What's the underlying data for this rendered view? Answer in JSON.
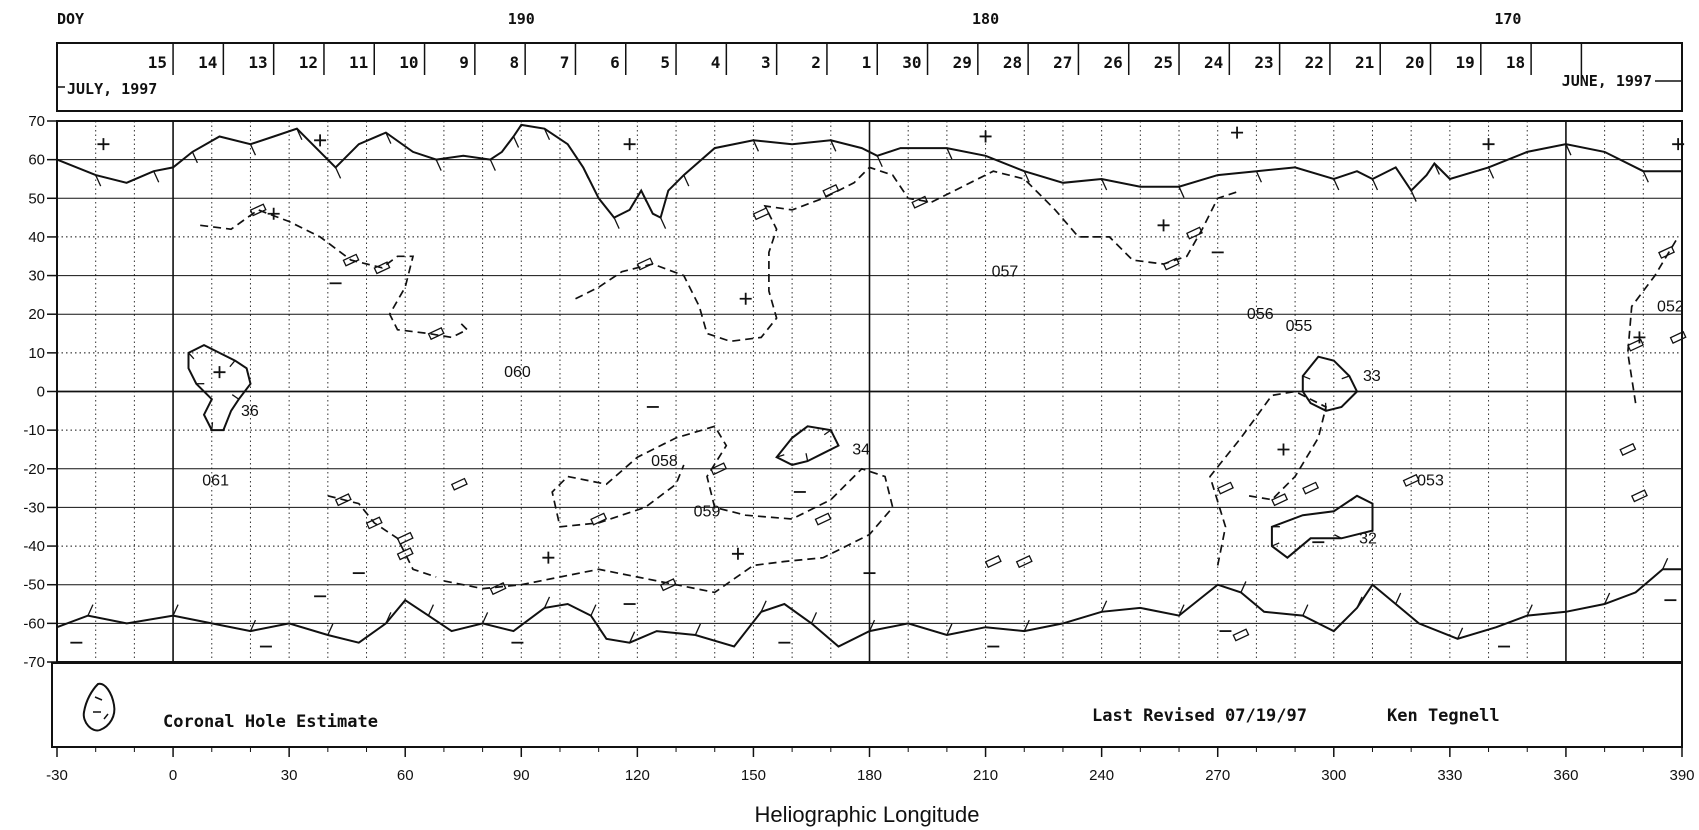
{
  "chart_data": {
    "type": "synoptic-map",
    "header": {
      "doy_label": "DOY",
      "doy_marks": [
        {
          "label": "190",
          "lon": 90
        },
        {
          "label": "180",
          "lon": 210
        },
        {
          "label": "170",
          "lon": 345
        }
      ],
      "dates": [
        {
          "label": "15",
          "lon": 0
        },
        {
          "label": "14",
          "lon": 13
        },
        {
          "label": "13",
          "lon": 26
        },
        {
          "label": "12",
          "lon": 39
        },
        {
          "label": "11",
          "lon": 52
        },
        {
          "label": "10",
          "lon": 65
        },
        {
          "label": "9",
          "lon": 78
        },
        {
          "label": "8",
          "lon": 91
        },
        {
          "label": "7",
          "lon": 104
        },
        {
          "label": "6",
          "lon": 117
        },
        {
          "label": "5",
          "lon": 130
        },
        {
          "label": "4",
          "lon": 143
        },
        {
          "label": "3",
          "lon": 156
        },
        {
          "label": "2",
          "lon": 169
        },
        {
          "label": "1",
          "lon": 182
        },
        {
          "label": "30",
          "lon": 195
        },
        {
          "label": "29",
          "lon": 208
        },
        {
          "label": "28",
          "lon": 221
        },
        {
          "label": "27",
          "lon": 234
        },
        {
          "label": "26",
          "lon": 247
        },
        {
          "label": "25",
          "lon": 260
        },
        {
          "label": "24",
          "lon": 273
        },
        {
          "label": "23",
          "lon": 286
        },
        {
          "label": "22",
          "lon": 299
        },
        {
          "label": "21",
          "lon": 312
        },
        {
          "label": "20",
          "lon": 325
        },
        {
          "label": "19",
          "lon": 338
        },
        {
          "label": "18",
          "lon": 351
        }
      ],
      "month_left": "JULY, 1997",
      "month_right": "JUNE, 1997"
    },
    "xlabel": "Heliographic Longitude",
    "xlim": [
      -30,
      390
    ],
    "xticks": [
      -30,
      0,
      30,
      60,
      90,
      120,
      150,
      180,
      210,
      240,
      270,
      300,
      330,
      360,
      390
    ],
    "ylim": [
      -70,
      70
    ],
    "yticks": [
      70,
      60,
      50,
      40,
      30,
      20,
      10,
      0,
      -10,
      -20,
      -30,
      -40,
      -50,
      -60,
      -70
    ],
    "grid": true,
    "polar_crown_north": [
      [
        -30,
        60
      ],
      [
        -20,
        56
      ],
      [
        -12,
        54
      ],
      [
        -5,
        57
      ],
      [
        0,
        58
      ],
      [
        5,
        62
      ],
      [
        12,
        66
      ],
      [
        20,
        64
      ],
      [
        26,
        66
      ],
      [
        32,
        68
      ],
      [
        38,
        62
      ],
      [
        42,
        58
      ],
      [
        48,
        64
      ],
      [
        55,
        67
      ],
      [
        62,
        62
      ],
      [
        68,
        60
      ],
      [
        75,
        61
      ],
      [
        82,
        60
      ],
      [
        85,
        62
      ],
      [
        88,
        66
      ],
      [
        90,
        69
      ],
      [
        96,
        68
      ],
      [
        102,
        64
      ],
      [
        106,
        58
      ],
      [
        110,
        50
      ],
      [
        114,
        45
      ],
      [
        118,
        47
      ],
      [
        121,
        52
      ],
      [
        124,
        46
      ],
      [
        126,
        45
      ],
      [
        128,
        52
      ],
      [
        132,
        56
      ],
      [
        140,
        63
      ],
      [
        150,
        65
      ],
      [
        160,
        64
      ],
      [
        170,
        65
      ],
      [
        178,
        63
      ],
      [
        182,
        61
      ],
      [
        188,
        63
      ],
      [
        200,
        63
      ],
      [
        210,
        61
      ],
      [
        220,
        57
      ],
      [
        230,
        54
      ],
      [
        240,
        55
      ],
      [
        250,
        53
      ],
      [
        260,
        53
      ],
      [
        270,
        56
      ],
      [
        280,
        57
      ],
      [
        290,
        58
      ],
      [
        300,
        55
      ],
      [
        306,
        57
      ],
      [
        310,
        55
      ],
      [
        316,
        58
      ],
      [
        320,
        52
      ],
      [
        324,
        56
      ],
      [
        326,
        59
      ],
      [
        330,
        55
      ],
      [
        340,
        58
      ],
      [
        350,
        62
      ],
      [
        360,
        64
      ],
      [
        370,
        62
      ],
      [
        380,
        57
      ],
      [
        390,
        57
      ]
    ],
    "polar_crown_south": [
      [
        -30,
        -61
      ],
      [
        -22,
        -58
      ],
      [
        -12,
        -60
      ],
      [
        0,
        -58
      ],
      [
        10,
        -60
      ],
      [
        20,
        -62
      ],
      [
        30,
        -60
      ],
      [
        40,
        -63
      ],
      [
        48,
        -65
      ],
      [
        55,
        -60
      ],
      [
        60,
        -54
      ],
      [
        66,
        -58
      ],
      [
        72,
        -62
      ],
      [
        80,
        -60
      ],
      [
        88,
        -62
      ],
      [
        96,
        -56
      ],
      [
        102,
        -55
      ],
      [
        108,
        -58
      ],
      [
        112,
        -64
      ],
      [
        118,
        -65
      ],
      [
        125,
        -62
      ],
      [
        135,
        -63
      ],
      [
        145,
        -66
      ],
      [
        152,
        -57
      ],
      [
        158,
        -55
      ],
      [
        165,
        -60
      ],
      [
        172,
        -66
      ],
      [
        180,
        -62
      ],
      [
        190,
        -60
      ],
      [
        200,
        -63
      ],
      [
        210,
        -61
      ],
      [
        220,
        -62
      ],
      [
        230,
        -60
      ],
      [
        240,
        -57
      ],
      [
        250,
        -56
      ],
      [
        260,
        -58
      ],
      [
        270,
        -50
      ],
      [
        276,
        -52
      ],
      [
        282,
        -57
      ],
      [
        292,
        -58
      ],
      [
        300,
        -62
      ],
      [
        306,
        -56
      ],
      [
        310,
        -50
      ],
      [
        316,
        -55
      ],
      [
        322,
        -60
      ],
      [
        332,
        -64
      ],
      [
        342,
        -61
      ],
      [
        350,
        -58
      ],
      [
        360,
        -57
      ],
      [
        370,
        -55
      ],
      [
        378,
        -52
      ],
      [
        385,
        -46
      ],
      [
        390,
        -46
      ]
    ],
    "neutral_lines": [
      [
        [
          7,
          43
        ],
        [
          15,
          42
        ],
        [
          22,
          47
        ],
        [
          30,
          44
        ],
        [
          38,
          40
        ],
        [
          46,
          34
        ],
        [
          54,
          32
        ],
        [
          58,
          35
        ],
        [
          62,
          35
        ],
        [
          60,
          27
        ],
        [
          56,
          20
        ],
        [
          58,
          16
        ],
        [
          66,
          15
        ],
        [
          72,
          14
        ],
        [
          76,
          16
        ],
        [
          74,
          18
        ]
      ],
      [
        [
          104,
          24
        ],
        [
          110,
          27
        ],
        [
          116,
          31
        ],
        [
          124,
          33
        ],
        [
          132,
          30
        ],
        [
          136,
          22
        ],
        [
          138,
          15
        ],
        [
          144,
          13
        ],
        [
          152,
          14
        ],
        [
          156,
          19
        ],
        [
          154,
          26
        ],
        [
          154,
          36
        ],
        [
          156,
          42
        ],
        [
          153,
          48
        ],
        [
          160,
          47
        ],
        [
          168,
          50
        ],
        [
          176,
          54
        ],
        [
          180,
          58
        ],
        [
          186,
          56
        ],
        [
          190,
          50
        ],
        [
          196,
          49
        ],
        [
          204,
          53
        ],
        [
          212,
          57
        ],
        [
          220,
          55
        ],
        [
          228,
          47
        ],
        [
          234,
          40
        ],
        [
          242,
          40
        ],
        [
          248,
          34
        ],
        [
          256,
          33
        ],
        [
          262,
          35
        ],
        [
          266,
          42
        ],
        [
          270,
          50
        ],
        [
          276,
          52
        ]
      ],
      [
        [
          70,
          -49
        ],
        [
          80,
          -51
        ],
        [
          90,
          -50
        ],
        [
          100,
          -48
        ],
        [
          110,
          -46
        ],
        [
          120,
          -48
        ],
        [
          130,
          -50
        ],
        [
          140,
          -52
        ],
        [
          150,
          -45
        ],
        [
          158,
          -44
        ],
        [
          168,
          -43
        ],
        [
          180,
          -37
        ],
        [
          186,
          -30
        ],
        [
          184,
          -22
        ],
        [
          178,
          -20
        ],
        [
          170,
          -28
        ],
        [
          160,
          -33
        ],
        [
          148,
          -32
        ],
        [
          140,
          -30
        ],
        [
          138,
          -22
        ],
        [
          143,
          -14
        ],
        [
          140,
          -9
        ],
        [
          130,
          -12
        ],
        [
          120,
          -17
        ],
        [
          112,
          -24
        ],
        [
          102,
          -22
        ],
        [
          98,
          -26
        ],
        [
          100,
          -35
        ],
        [
          110,
          -34
        ],
        [
          122,
          -30
        ],
        [
          130,
          -24
        ],
        [
          132,
          -19
        ]
      ],
      [
        [
          40,
          -27
        ],
        [
          48,
          -29
        ],
        [
          52,
          -34
        ],
        [
          58,
          -38
        ],
        [
          62,
          -46
        ],
        [
          68,
          -48
        ]
      ],
      [
        [
          378,
          -3
        ],
        [
          376,
          10
        ],
        [
          377,
          22
        ],
        [
          383,
          30
        ],
        [
          389,
          40
        ]
      ],
      [
        [
          270,
          -45
        ],
        [
          272,
          -35
        ],
        [
          268,
          -22
        ],
        [
          276,
          -12
        ],
        [
          284,
          -1
        ],
        [
          290,
          0
        ],
        [
          298,
          -4
        ],
        [
          296,
          -12
        ],
        [
          290,
          -22
        ],
        [
          284,
          -28
        ],
        [
          278,
          -27
        ]
      ]
    ],
    "coronal_holes": [
      [
        [
          4,
          10
        ],
        [
          8,
          12
        ],
        [
          12,
          10
        ],
        [
          16,
          8
        ],
        [
          19,
          6
        ],
        [
          20,
          2
        ],
        [
          17,
          -2
        ],
        [
          15,
          -5
        ],
        [
          13,
          -10
        ],
        [
          10,
          -10
        ],
        [
          8,
          -6
        ],
        [
          10,
          -2
        ],
        [
          6,
          2
        ],
        [
          4,
          6
        ],
        [
          4,
          10
        ]
      ],
      [
        [
          156,
          -17
        ],
        [
          160,
          -12
        ],
        [
          164,
          -9
        ],
        [
          170,
          -10
        ],
        [
          172,
          -14
        ],
        [
          168,
          -16
        ],
        [
          164,
          -18
        ],
        [
          160,
          -19
        ],
        [
          156,
          -17
        ]
      ],
      [
        [
          292,
          4
        ],
        [
          296,
          9
        ],
        [
          300,
          8
        ],
        [
          304,
          4
        ],
        [
          306,
          0
        ],
        [
          302,
          -4
        ],
        [
          298,
          -5
        ],
        [
          294,
          -3
        ],
        [
          292,
          0
        ],
        [
          292,
          4
        ]
      ],
      [
        [
          284,
          -35
        ],
        [
          292,
          -32
        ],
        [
          300,
          -31
        ],
        [
          306,
          -27
        ],
        [
          310,
          -29
        ],
        [
          310,
          -36
        ],
        [
          302,
          -38
        ],
        [
          294,
          -38
        ],
        [
          288,
          -43
        ],
        [
          284,
          -40
        ],
        [
          284,
          -35
        ]
      ]
    ],
    "polarity_plus": [
      [
        -18,
        64
      ],
      [
        12,
        5
      ],
      [
        26,
        46
      ],
      [
        38,
        65
      ],
      [
        118,
        64
      ],
      [
        148,
        24
      ],
      [
        97,
        -43
      ],
      [
        146,
        -42
      ],
      [
        210,
        66
      ],
      [
        275,
        67
      ],
      [
        287,
        -15
      ],
      [
        256,
        43
      ],
      [
        340,
        64
      ],
      [
        379,
        14
      ],
      [
        389,
        64
      ]
    ],
    "polarity_minus": [
      [
        -25,
        -65
      ],
      [
        24,
        -66
      ],
      [
        38,
        -53
      ],
      [
        42,
        28
      ],
      [
        48,
        -47
      ],
      [
        89,
        -65
      ],
      [
        118,
        -55
      ],
      [
        124,
        -4
      ],
      [
        158,
        -65
      ],
      [
        162,
        -26
      ],
      [
        180,
        -47
      ],
      [
        212,
        -66
      ],
      [
        270,
        36
      ],
      [
        272,
        -62
      ],
      [
        296,
        -39
      ],
      [
        344,
        -66
      ],
      [
        387,
        -54
      ]
    ],
    "region_labels": [
      {
        "label": "057",
        "lon": 210,
        "lat": 31
      },
      {
        "label": "056",
        "lon": 276,
        "lat": 20
      },
      {
        "label": "055",
        "lon": 286,
        "lat": 17
      },
      {
        "label": "052",
        "lon": 382,
        "lat": 22
      },
      {
        "label": "060",
        "lon": 84,
        "lat": 5
      },
      {
        "label": "36",
        "lon": 16,
        "lat": -5
      },
      {
        "label": "33",
        "lon": 306,
        "lat": 4
      },
      {
        "label": "34",
        "lon": 174,
        "lat": -15
      },
      {
        "label": "058",
        "lon": 122,
        "lat": -18
      },
      {
        "label": "053",
        "lon": 320,
        "lat": -23
      },
      {
        "label": "061",
        "lon": 6,
        "lat": -23
      },
      {
        "label": "059",
        "lon": 133,
        "lat": -31
      },
      {
        "label": "32",
        "lon": 305,
        "lat": -38
      }
    ],
    "legend": {
      "label": "Coronal Hole Estimate"
    },
    "footer": {
      "revised": "Last Revised 07/19/97",
      "author": "Ken Tegnell"
    }
  }
}
